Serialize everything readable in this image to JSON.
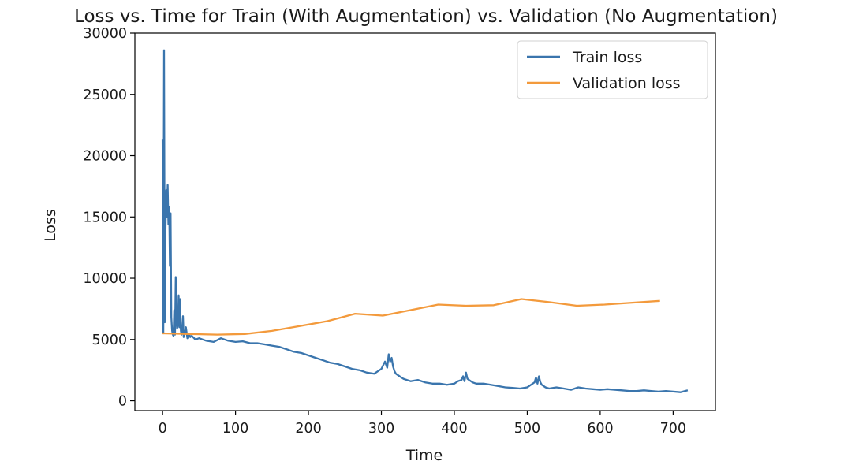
{
  "chart_data": {
    "type": "line",
    "title": "Loss vs. Time for Train (With Augmentation) vs. Validation (No Augmentation)",
    "xlabel": "Time",
    "ylabel": "Loss",
    "xlim": [
      -38,
      758
    ],
    "ylim": [
      -800,
      30000
    ],
    "xticks": [
      0,
      100,
      200,
      300,
      400,
      500,
      600,
      700
    ],
    "yticks": [
      0,
      5000,
      10000,
      15000,
      20000,
      25000,
      30000
    ],
    "grid": false,
    "legend_position": "top-right",
    "series": [
      {
        "name": "Train loss",
        "color": "#3a75ad",
        "x": [
          0,
          1,
          2,
          3,
          4,
          5,
          6,
          7,
          8,
          9,
          10,
          11,
          12,
          13,
          14,
          15,
          16,
          17,
          18,
          19,
          20,
          21,
          22,
          23,
          24,
          25,
          26,
          27,
          28,
          29,
          30,
          32,
          34,
          36,
          38,
          40,
          45,
          50,
          55,
          60,
          70,
          80,
          90,
          100,
          110,
          120,
          130,
          140,
          150,
          160,
          170,
          180,
          190,
          200,
          210,
          220,
          230,
          240,
          250,
          260,
          270,
          280,
          290,
          295,
          300,
          305,
          308,
          310,
          312,
          314,
          316,
          318,
          320,
          325,
          330,
          340,
          350,
          360,
          370,
          380,
          390,
          400,
          405,
          410,
          412,
          414,
          416,
          418,
          420,
          425,
          430,
          440,
          450,
          460,
          470,
          480,
          490,
          500,
          505,
          510,
          512,
          514,
          516,
          518,
          520,
          525,
          530,
          540,
          550,
          560,
          570,
          580,
          590,
          600,
          610,
          620,
          630,
          640,
          650,
          660,
          670,
          680,
          690,
          700,
          710,
          720
        ],
        "y": [
          21300,
          5500,
          28600,
          6400,
          13800,
          17200,
          15000,
          17600,
          14400,
          15800,
          11000,
          15300,
          6800,
          5700,
          5400,
          5300,
          7400,
          5400,
          10100,
          6600,
          5900,
          6300,
          8600,
          6000,
          8300,
          5700,
          5400,
          5800,
          6900,
          5200,
          5400,
          6000,
          5100,
          5500,
          5200,
          5300,
          5000,
          5100,
          5000,
          4900,
          4800,
          5100,
          4900,
          4800,
          4850,
          4700,
          4700,
          4600,
          4500,
          4400,
          4200,
          4000,
          3900,
          3700,
          3500,
          3300,
          3100,
          3000,
          2800,
          2600,
          2500,
          2300,
          2200,
          2400,
          2600,
          3200,
          2700,
          3800,
          3200,
          3500,
          2800,
          2400,
          2200,
          2000,
          1800,
          1600,
          1700,
          1500,
          1400,
          1400,
          1300,
          1400,
          1600,
          1700,
          2000,
          1600,
          2300,
          1800,
          1700,
          1500,
          1400,
          1400,
          1300,
          1200,
          1100,
          1050,
          1000,
          1100,
          1300,
          1500,
          1900,
          1400,
          2000,
          1500,
          1300,
          1100,
          1000,
          1100,
          1000,
          900,
          1100,
          1000,
          950,
          900,
          950,
          900,
          850,
          800,
          800,
          850,
          800,
          750,
          800,
          750,
          700,
          850
        ]
      },
      {
        "name": "Validation loss",
        "color": "#f39a3c",
        "x": [
          0,
          37,
          75,
          113,
          150,
          188,
          226,
          264,
          302,
          340,
          378,
          416,
          454,
          492,
          530,
          568,
          606,
          644,
          682
        ],
        "y": [
          5500,
          5450,
          5400,
          5450,
          5700,
          6100,
          6500,
          7100,
          6950,
          7400,
          7850,
          7750,
          7800,
          8300,
          8050,
          7750,
          7850,
          8000,
          8150
        ]
      }
    ]
  }
}
